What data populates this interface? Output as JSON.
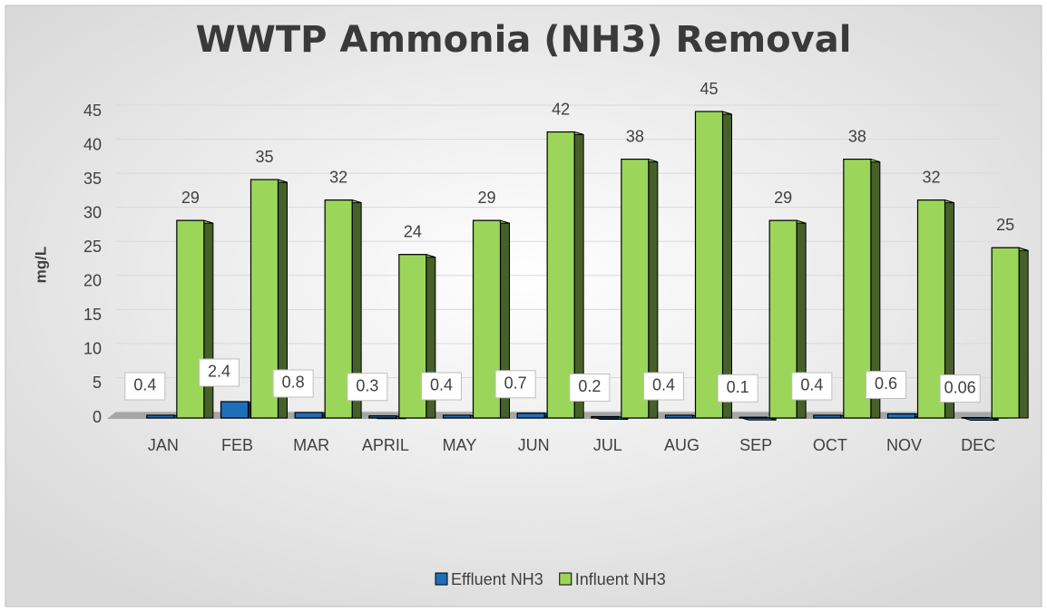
{
  "chart_data": {
    "type": "bar3d",
    "title": "WWTP Ammonia (NH3) Removal",
    "y_label": "mg/L",
    "categories": [
      "JAN",
      "FEB",
      "MAR",
      "APRIL",
      "MAY",
      "JUN",
      "JUL",
      "AUG",
      "SEP",
      "OCT",
      "NOV",
      "DEC"
    ],
    "series": [
      {
        "name": "Effluent NH3",
        "color": "#1f6fb8",
        "values": [
          0.4,
          2.4,
          0.8,
          0.3,
          0.4,
          0.7,
          0.2,
          0.4,
          0.1,
          0.4,
          0.6,
          0.06
        ]
      },
      {
        "name": "Influent NH3",
        "color": "#9bd65a",
        "values": [
          29,
          35,
          32,
          24,
          29,
          42,
          38,
          45,
          29,
          38,
          32,
          25
        ]
      }
    ],
    "ylim": [
      0,
      45
    ],
    "yticks": [
      0,
      5,
      10,
      15,
      20,
      25,
      30,
      35,
      40,
      45
    ],
    "grid": true,
    "legend": "bottom"
  }
}
